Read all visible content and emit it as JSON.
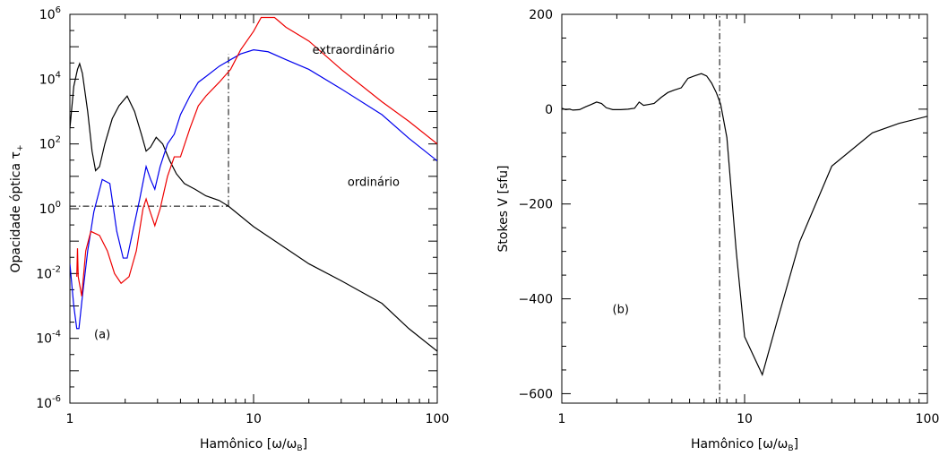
{
  "chart_data": [
    {
      "id": "a",
      "type": "line",
      "xscale": "log",
      "yscale": "log",
      "xlim": [
        1,
        100
      ],
      "ylim": [
        1e-06,
        1000000.0
      ],
      "xlabel": "Hamônico [ω/ω",
      "xlabel_sub": "B",
      "xlabel_end": "]",
      "ylabel": "Opacidade óptica τ",
      "ylabel_sub": "+",
      "grid": false,
      "x_ticks": [
        {
          "value": 1,
          "label": "1"
        },
        {
          "value": 10,
          "label": "10"
        },
        {
          "value": 100,
          "label": "100"
        }
      ],
      "y_ticks": [
        {
          "value": 1e-06,
          "base": "10",
          "exp": "-6"
        },
        {
          "value": 0.0001,
          "base": "10",
          "exp": "-4"
        },
        {
          "value": 0.01,
          "base": "10",
          "exp": "-2"
        },
        {
          "value": 1,
          "base": "10",
          "exp": "0"
        },
        {
          "value": 100.0,
          "base": "10",
          "exp": "2"
        },
        {
          "value": 10000.0,
          "base": "10",
          "exp": "4"
        },
        {
          "value": 1000000.0,
          "base": "10",
          "exp": "6"
        }
      ],
      "series": [
        {
          "color": "#000000",
          "points": [
            [
              1.0,
              300
            ],
            [
              1.05,
              6000
            ],
            [
              1.1,
              20000
            ],
            [
              1.13,
              30000
            ],
            [
              1.17,
              15000
            ],
            [
              1.25,
              1000
            ],
            [
              1.32,
              60
            ],
            [
              1.38,
              15
            ],
            [
              1.45,
              20
            ],
            [
              1.55,
              100
            ],
            [
              1.7,
              600
            ],
            [
              1.85,
              1500
            ],
            [
              2.05,
              3000
            ],
            [
              2.25,
              1000
            ],
            [
              2.45,
              200
            ],
            [
              2.6,
              60
            ],
            [
              2.75,
              80
            ],
            [
              2.95,
              160
            ],
            [
              3.2,
              100
            ],
            [
              3.5,
              30
            ],
            [
              3.8,
              12
            ],
            [
              4.2,
              6
            ],
            [
              4.8,
              4
            ],
            [
              5.5,
              2.5
            ],
            [
              6.5,
              1.8
            ],
            [
              7.3,
              1.2
            ],
            [
              10,
              0.28
            ],
            [
              15,
              0.06
            ],
            [
              20,
              0.02
            ],
            [
              30,
              0.006
            ],
            [
              50,
              0.0012
            ],
            [
              70,
              0.0002
            ],
            [
              100,
              4e-05
            ]
          ]
        },
        {
          "color": "#0000ee",
          "points": [
            [
              1.0,
              0.02
            ],
            [
              1.05,
              0.001
            ],
            [
              1.09,
              0.0002
            ],
            [
              1.12,
              0.0002
            ],
            [
              1.17,
              0.002
            ],
            [
              1.25,
              0.05
            ],
            [
              1.35,
              0.8
            ],
            [
              1.5,
              8
            ],
            [
              1.65,
              6
            ],
            [
              1.8,
              0.2
            ],
            [
              1.95,
              0.03
            ],
            [
              2.05,
              0.03
            ],
            [
              2.2,
              0.2
            ],
            [
              2.4,
              2
            ],
            [
              2.6,
              20
            ],
            [
              2.75,
              8
            ],
            [
              2.9,
              4
            ],
            [
              3.1,
              20
            ],
            [
              3.4,
              100
            ],
            [
              3.7,
              200
            ],
            [
              4.0,
              800
            ],
            [
              4.5,
              3000
            ],
            [
              5.0,
              8000
            ],
            [
              5.5,
              12000
            ],
            [
              6.5,
              25000
            ],
            [
              7.5,
              40000
            ],
            [
              8.5,
              60000
            ],
            [
              10,
              80000
            ],
            [
              12,
              70000
            ],
            [
              15,
              40000
            ],
            [
              20,
              20000
            ],
            [
              30,
              5000
            ],
            [
              50,
              800
            ],
            [
              70,
              150
            ],
            [
              100,
              30
            ]
          ]
        },
        {
          "color": "#ee0000",
          "points": [
            [
              1.09,
              0.008
            ],
            [
              1.1,
              0.06
            ],
            [
              1.11,
              0.008
            ],
            [
              1.16,
              0.002
            ],
            [
              1.22,
              0.05
            ],
            [
              1.3,
              0.2
            ],
            [
              1.45,
              0.15
            ],
            [
              1.6,
              0.05
            ],
            [
              1.75,
              0.01
            ],
            [
              1.9,
              0.005
            ],
            [
              2.1,
              0.008
            ],
            [
              2.3,
              0.05
            ],
            [
              2.5,
              1
            ],
            [
              2.6,
              2
            ],
            [
              2.7,
              1
            ],
            [
              2.9,
              0.3
            ],
            [
              3.1,
              1
            ],
            [
              3.4,
              10
            ],
            [
              3.7,
              40
            ],
            [
              4.0,
              40
            ],
            [
              4.5,
              300
            ],
            [
              5.0,
              1500
            ],
            [
              5.5,
              3000
            ],
            [
              6.5,
              8000
            ],
            [
              7.5,
              20000
            ],
            [
              8.5,
              80000
            ],
            [
              10,
              300000
            ],
            [
              11,
              800000
            ],
            [
              13,
              800000
            ],
            [
              15,
              400000
            ],
            [
              20,
              150000
            ],
            [
              30,
              20000
            ],
            [
              50,
              2000
            ],
            [
              70,
              500
            ],
            [
              100,
              100
            ]
          ]
        }
      ],
      "annotations": [
        {
          "text": "extraordinário",
          "x": 35,
          "y": 60000
        },
        {
          "text": "ordinário",
          "x": 45,
          "y": 5
        },
        {
          "text": "(a)",
          "x": 1.5,
          "y": 0.0001
        }
      ],
      "reference_lines": [
        {
          "orientation": "vertical",
          "x": 7.3,
          "y_range": [
            1.2,
            60000
          ]
        },
        {
          "orientation": "horizontal",
          "y": 1.2,
          "x_range": [
            1,
            7.3
          ]
        }
      ]
    },
    {
      "id": "b",
      "type": "line",
      "xscale": "log",
      "yscale": "linear",
      "xlim": [
        1,
        100
      ],
      "ylim": [
        -620,
        200
      ],
      "xlabel": "Hamônico [ω/ω",
      "xlabel_sub": "B",
      "xlabel_end": "]",
      "ylabel": "Stokes V [sfu]",
      "grid": false,
      "x_ticks": [
        {
          "value": 1,
          "label": "1"
        },
        {
          "value": 10,
          "label": "10"
        },
        {
          "value": 100,
          "label": "100"
        }
      ],
      "y_ticks": [
        {
          "value": 200,
          "label": "200"
        },
        {
          "value": 0,
          "label": "0"
        },
        {
          "value": -200,
          "label": "−200"
        },
        {
          "value": -400,
          "label": "−400"
        },
        {
          "value": -600,
          "label": "−600"
        }
      ],
      "series": [
        {
          "color": "#000000",
          "points": [
            [
              1.0,
              2
            ],
            [
              1.05,
              -1
            ],
            [
              1.1,
              0
            ],
            [
              1.15,
              -2
            ],
            [
              1.25,
              -1
            ],
            [
              1.35,
              5
            ],
            [
              1.45,
              10
            ],
            [
              1.55,
              15
            ],
            [
              1.65,
              12
            ],
            [
              1.75,
              3
            ],
            [
              1.9,
              -1
            ],
            [
              2.1,
              -1
            ],
            [
              2.3,
              0
            ],
            [
              2.5,
              2
            ],
            [
              2.65,
              15
            ],
            [
              2.8,
              8
            ],
            [
              3.0,
              10
            ],
            [
              3.2,
              12
            ],
            [
              3.5,
              25
            ],
            [
              3.8,
              35
            ],
            [
              4.1,
              40
            ],
            [
              4.5,
              45
            ],
            [
              4.9,
              65
            ],
            [
              5.3,
              70
            ],
            [
              5.8,
              75
            ],
            [
              6.2,
              70
            ],
            [
              6.6,
              55
            ],
            [
              7.0,
              35
            ],
            [
              7.4,
              10
            ],
            [
              8.0,
              -60
            ],
            [
              9.0,
              -300
            ],
            [
              10,
              -480
            ],
            [
              12.5,
              -560
            ],
            [
              15,
              -450
            ],
            [
              20,
              -280
            ],
            [
              30,
              -120
            ],
            [
              50,
              -50
            ],
            [
              70,
              -30
            ],
            [
              100,
              -15
            ]
          ]
        }
      ],
      "annotations": [
        {
          "text": "(b)",
          "x": 2.1,
          "y": -430
        }
      ],
      "reference_lines": [
        {
          "orientation": "vertical",
          "x": 7.3,
          "y_range": [
            -620,
            200
          ]
        }
      ]
    }
  ]
}
